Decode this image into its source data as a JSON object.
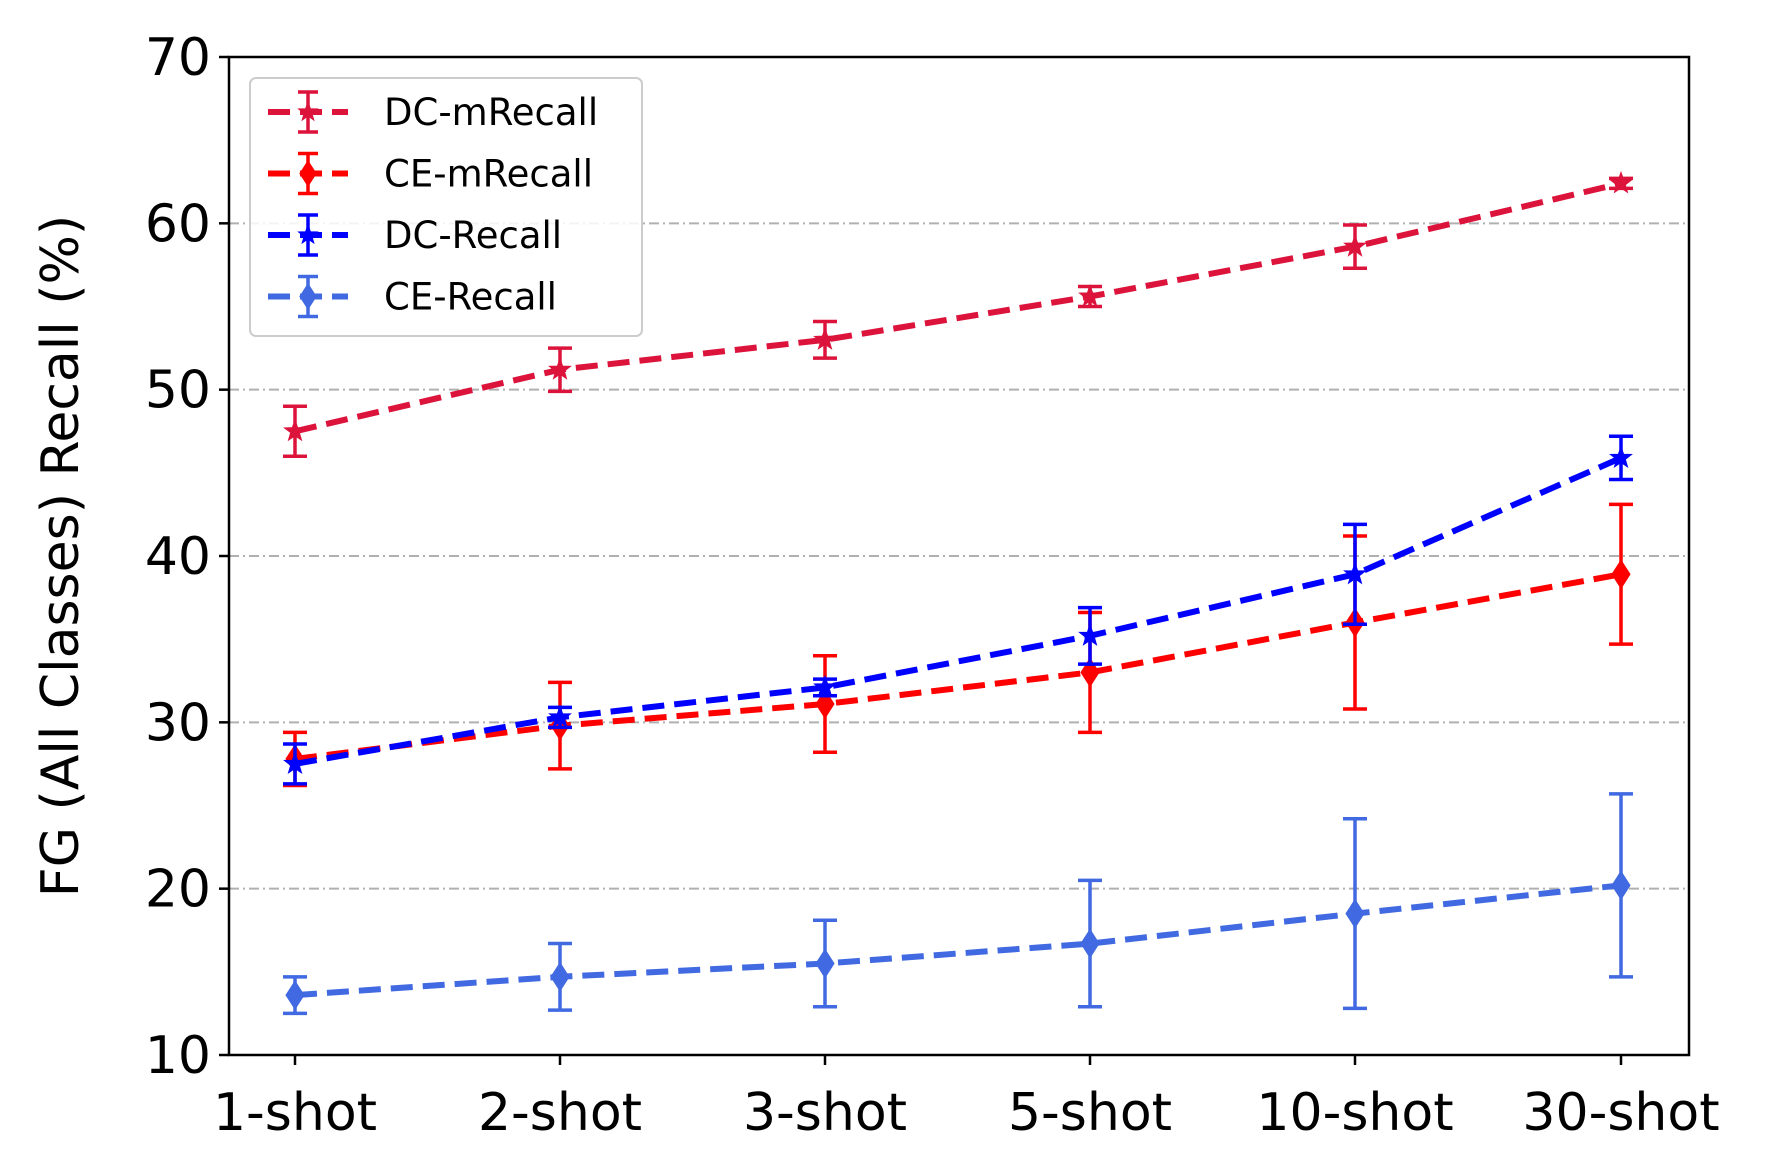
{
  "chart_data": {
    "type": "line",
    "ylabel": "FG (All Classes) Recall (%)",
    "xlabel": "",
    "categories": [
      "1-shot",
      "2-shot",
      "3-shot",
      "5-shot",
      "10-shot",
      "30-shot"
    ],
    "ylim": [
      10,
      70
    ],
    "yticks": [
      10,
      20,
      30,
      40,
      50,
      60,
      70
    ],
    "grid": "horizontal dash-dot lines at 20, 30, 40, 50, 60",
    "legend_position": "upper-left",
    "line_style": "dashed",
    "series": [
      {
        "name": "DC-mRecall",
        "color": "#dc143c",
        "marker": "star",
        "values": [
          47.5,
          51.2,
          53.0,
          55.6,
          58.6,
          62.4
        ],
        "errors": [
          1.5,
          1.3,
          1.1,
          0.6,
          1.3,
          0.3
        ]
      },
      {
        "name": "CE-mRecall",
        "color": "#ff0000",
        "marker": "diamond",
        "values": [
          27.8,
          29.8,
          31.1,
          33.0,
          36.0,
          38.9
        ],
        "errors": [
          1.6,
          2.6,
          2.9,
          3.6,
          5.2,
          4.2
        ]
      },
      {
        "name": "DC-Recall",
        "color": "#0000ff",
        "marker": "star",
        "values": [
          27.5,
          30.3,
          32.1,
          35.2,
          38.9,
          45.9
        ],
        "errors": [
          1.2,
          0.6,
          0.5,
          1.7,
          3.0,
          1.3
        ]
      },
      {
        "name": "CE-Recall",
        "color": "#4169e1",
        "marker": "diamond",
        "values": [
          13.6,
          14.7,
          15.5,
          16.7,
          18.5,
          20.2
        ],
        "errors": [
          1.1,
          2.0,
          2.6,
          3.8,
          5.7,
          5.5
        ]
      }
    ]
  }
}
